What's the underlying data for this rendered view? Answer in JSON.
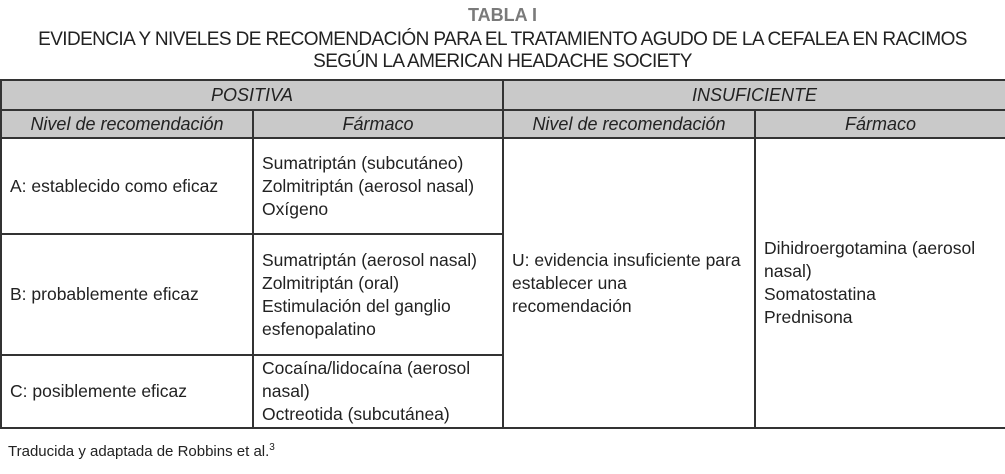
{
  "title": {
    "label": "TABLA I",
    "line1": "EVIDENCIA Y NIVELES DE RECOMENDACIÓN PARA EL TRATAMIENTO AGUDO DE LA CEFALEA EN RACIMOS",
    "line2": "SEGÚN LA AMERICAN HEADACHE SOCIETY"
  },
  "table": {
    "groups": [
      "POSITIVA",
      "INSUFICIENTE"
    ],
    "columns": [
      "Nivel de recomendación",
      "Fármaco",
      "Nivel de recomendación",
      "Fármaco"
    ],
    "positive_rows": [
      {
        "level": "A: establecido como eficaz",
        "drugs": [
          "Sumatriptán (subcutáneo)",
          "Zolmitriptán (aerosol nasal)",
          "Oxígeno"
        ]
      },
      {
        "level": "B: probablemente eficaz",
        "drugs": [
          "Sumatriptán (aerosol nasal)",
          "Zolmitriptán (oral)",
          "Estimulación del ganglio esfenopalatino"
        ]
      },
      {
        "level": "C: posiblemente eficaz",
        "drugs": [
          "Cocaína/lidocaína (aerosol nasal)",
          "Octreotida (subcutánea)"
        ]
      }
    ],
    "insufficient": {
      "level": "U: evidencia insuficiente para establecer una recomendación",
      "drugs": [
        "Dihidroergotamina (aerosol nasal)",
        "Somatostatina",
        "Prednisona"
      ]
    }
  },
  "footnote": {
    "text": "Traducida y adaptada de Robbins et al.",
    "ref": "3"
  }
}
